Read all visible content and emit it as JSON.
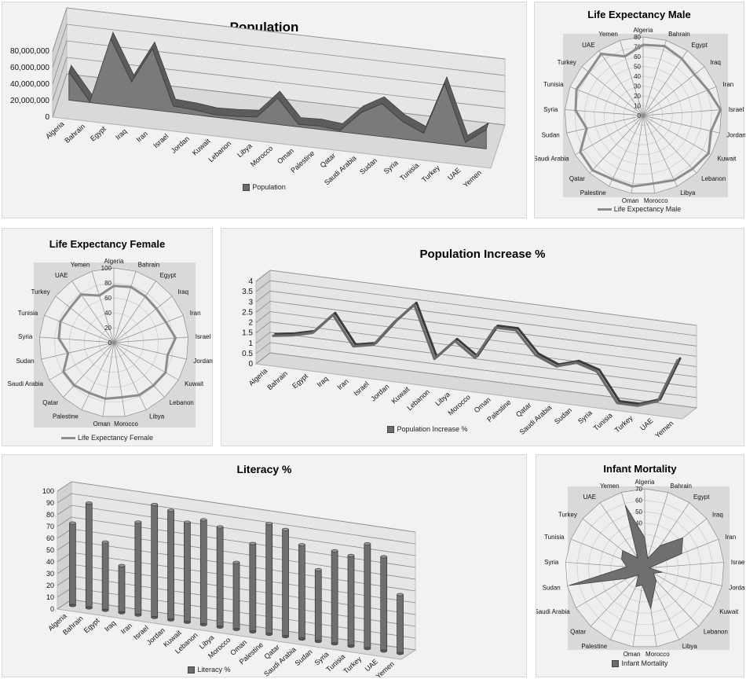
{
  "countries": [
    "Algeria",
    "Bahrain",
    "Egypt",
    "Iraq",
    "Iran",
    "Israel",
    "Jordan",
    "Kuwait",
    "Lebanon",
    "Libya",
    "Morocco",
    "Oman",
    "Palestine",
    "Qatar",
    "Saudi Arabia",
    "Sudan",
    "Syria",
    "Tunisia",
    "Turkey",
    "UAE",
    "Yemen"
  ],
  "chart_data": [
    {
      "id": "population",
      "type": "area",
      "title": "Population",
      "legend": "Population",
      "categories": [
        "Algeria",
        "Bahrain",
        "Egypt",
        "Iraq",
        "Iran",
        "Israel",
        "Jordan",
        "Kuwait",
        "Lebanon",
        "Libya",
        "Morocco",
        "Oman",
        "Palestine",
        "Qatar",
        "Saudi Arabia",
        "Sudan",
        "Syria",
        "Tunisia",
        "Turkey",
        "UAE",
        "Yemen"
      ],
      "values": [
        34000000,
        1000000,
        80000000,
        31000000,
        74000000,
        7500000,
        6000000,
        3000000,
        4000000,
        6000000,
        32000000,
        3000000,
        4000000,
        1500000,
        26000000,
        40000000,
        21000000,
        10000000,
        73000000,
        5000000,
        23000000
      ],
      "ylim": [
        0,
        80000000
      ],
      "yticks": [
        "0",
        "20,000,000",
        "40,000,000",
        "60,000,000",
        "80,000,000"
      ]
    },
    {
      "id": "life_male",
      "type": "radar",
      "title": "Life Expectancy Male",
      "legend": "Life Expectancy Male",
      "categories": [
        "Algeria",
        "Bahrain",
        "Egypt",
        "Iraq",
        "Iran",
        "Israel",
        "Jordan",
        "Kuwait",
        "Lebanon",
        "Libya",
        "Morocco",
        "Oman",
        "Palestine",
        "Qatar",
        "Saudi Arabia",
        "Sudan",
        "Syria",
        "Tunisia",
        "Turkey",
        "UAE",
        "Yemen"
      ],
      "values": [
        72,
        74,
        70,
        67,
        71,
        79,
        71,
        77,
        74,
        73,
        70,
        73,
        72,
        76,
        74,
        59,
        69,
        73,
        71,
        76,
        63
      ],
      "rmax": 80,
      "rticks": [
        "0",
        "10",
        "20",
        "30",
        "40",
        "50",
        "60",
        "70",
        "80"
      ]
    },
    {
      "id": "life_female",
      "type": "radar",
      "title": "Life Expectancy Female",
      "legend": "Life Expectancy Female",
      "categories": [
        "Algeria",
        "Bahrain",
        "Egypt",
        "Iraq",
        "Iran",
        "Israel",
        "Jordan",
        "Kuwait",
        "Lebanon",
        "Libya",
        "Morocco",
        "Oman",
        "Palestine",
        "Qatar",
        "Saudi Arabia",
        "Sudan",
        "Syria",
        "Tunisia",
        "Turkey",
        "UAE",
        "Yemen"
      ],
      "values": [
        76,
        78,
        75,
        73,
        75,
        83,
        74,
        80,
        78,
        78,
        74,
        76,
        75,
        78,
        78,
        63,
        74,
        77,
        75,
        78,
        66
      ],
      "rmax": 100,
      "rticks": [
        "0",
        "20",
        "40",
        "60",
        "80",
        "100"
      ]
    },
    {
      "id": "pop_increase",
      "type": "line",
      "title": "Population Increase %",
      "legend": "Population Increase %",
      "categories": [
        "Algeria",
        "Bahrain",
        "Egypt",
        "Iraq",
        "Iran",
        "Israel",
        "Jordan",
        "Kuwait",
        "Lebanon",
        "Libya",
        "Morocco",
        "Oman",
        "Palestine",
        "Qatar",
        "Saudi Arabia",
        "Sudan",
        "Syria",
        "Tunisia",
        "Turkey",
        "UAE",
        "Yemen"
      ],
      "values": [
        1.2,
        1.35,
        1.6,
        2.6,
        1.2,
        1.4,
        2.6,
        3.6,
        1.1,
        2.1,
        1.4,
        3.0,
        3.0,
        1.9,
        1.5,
        1.8,
        1.5,
        0.1,
        0.1,
        0.45,
        2.6
      ],
      "ylim": [
        0,
        4
      ],
      "yticks": [
        "0",
        "0.5",
        "1",
        "1.5",
        "2",
        "2.5",
        "3",
        "3.5",
        "4"
      ]
    },
    {
      "id": "literacy",
      "type": "bar",
      "title": "Literacy %",
      "legend": "Literacy %",
      "categories": [
        "Algeria",
        "Bahrain",
        "Egypt",
        "Iraq",
        "Iran",
        "Israel",
        "Jordan",
        "Kuwait",
        "Lebanon",
        "Libya",
        "Morocco",
        "Oman",
        "Palestine",
        "Qatar",
        "Saudi Arabia",
        "Sudan",
        "Syria",
        "Tunisia",
        "Turkey",
        "UAE",
        "Yemen"
      ],
      "values": [
        70,
        89,
        58,
        40,
        79,
        96,
        93,
        85,
        89,
        85,
        57,
        75,
        94,
        91,
        80,
        61,
        79,
        77,
        89,
        80,
        50
      ],
      "ylim": [
        0,
        100
      ],
      "yticks": [
        "0",
        "10",
        "20",
        "30",
        "40",
        "50",
        "60",
        "70",
        "80",
        "90",
        "100"
      ]
    },
    {
      "id": "infant_mortality",
      "type": "radar",
      "title": "Infant Mortality",
      "legend": "Infant Mortality",
      "categories": [
        "Algeria",
        "Bahrain",
        "Egypt",
        "Iraq",
        "Iran",
        "Israel",
        "Jordan",
        "Kuwait",
        "Lebanon",
        "Libya",
        "Morocco",
        "Oman",
        "Palestine",
        "Qatar",
        "Saudi Arabia",
        "Sudan",
        "Syria",
        "Tunisia",
        "Turkey",
        "UAE",
        "Yemen"
      ],
      "values": [
        27,
        9,
        24,
        43,
        35,
        4,
        16,
        9,
        15,
        20,
        36,
        15,
        18,
        8,
        18,
        68,
        16,
        22,
        25,
        11,
        58
      ],
      "rmax": 70,
      "rticks": [
        "0",
        "10",
        "20",
        "30",
        "40",
        "50",
        "60",
        "70"
      ]
    }
  ]
}
